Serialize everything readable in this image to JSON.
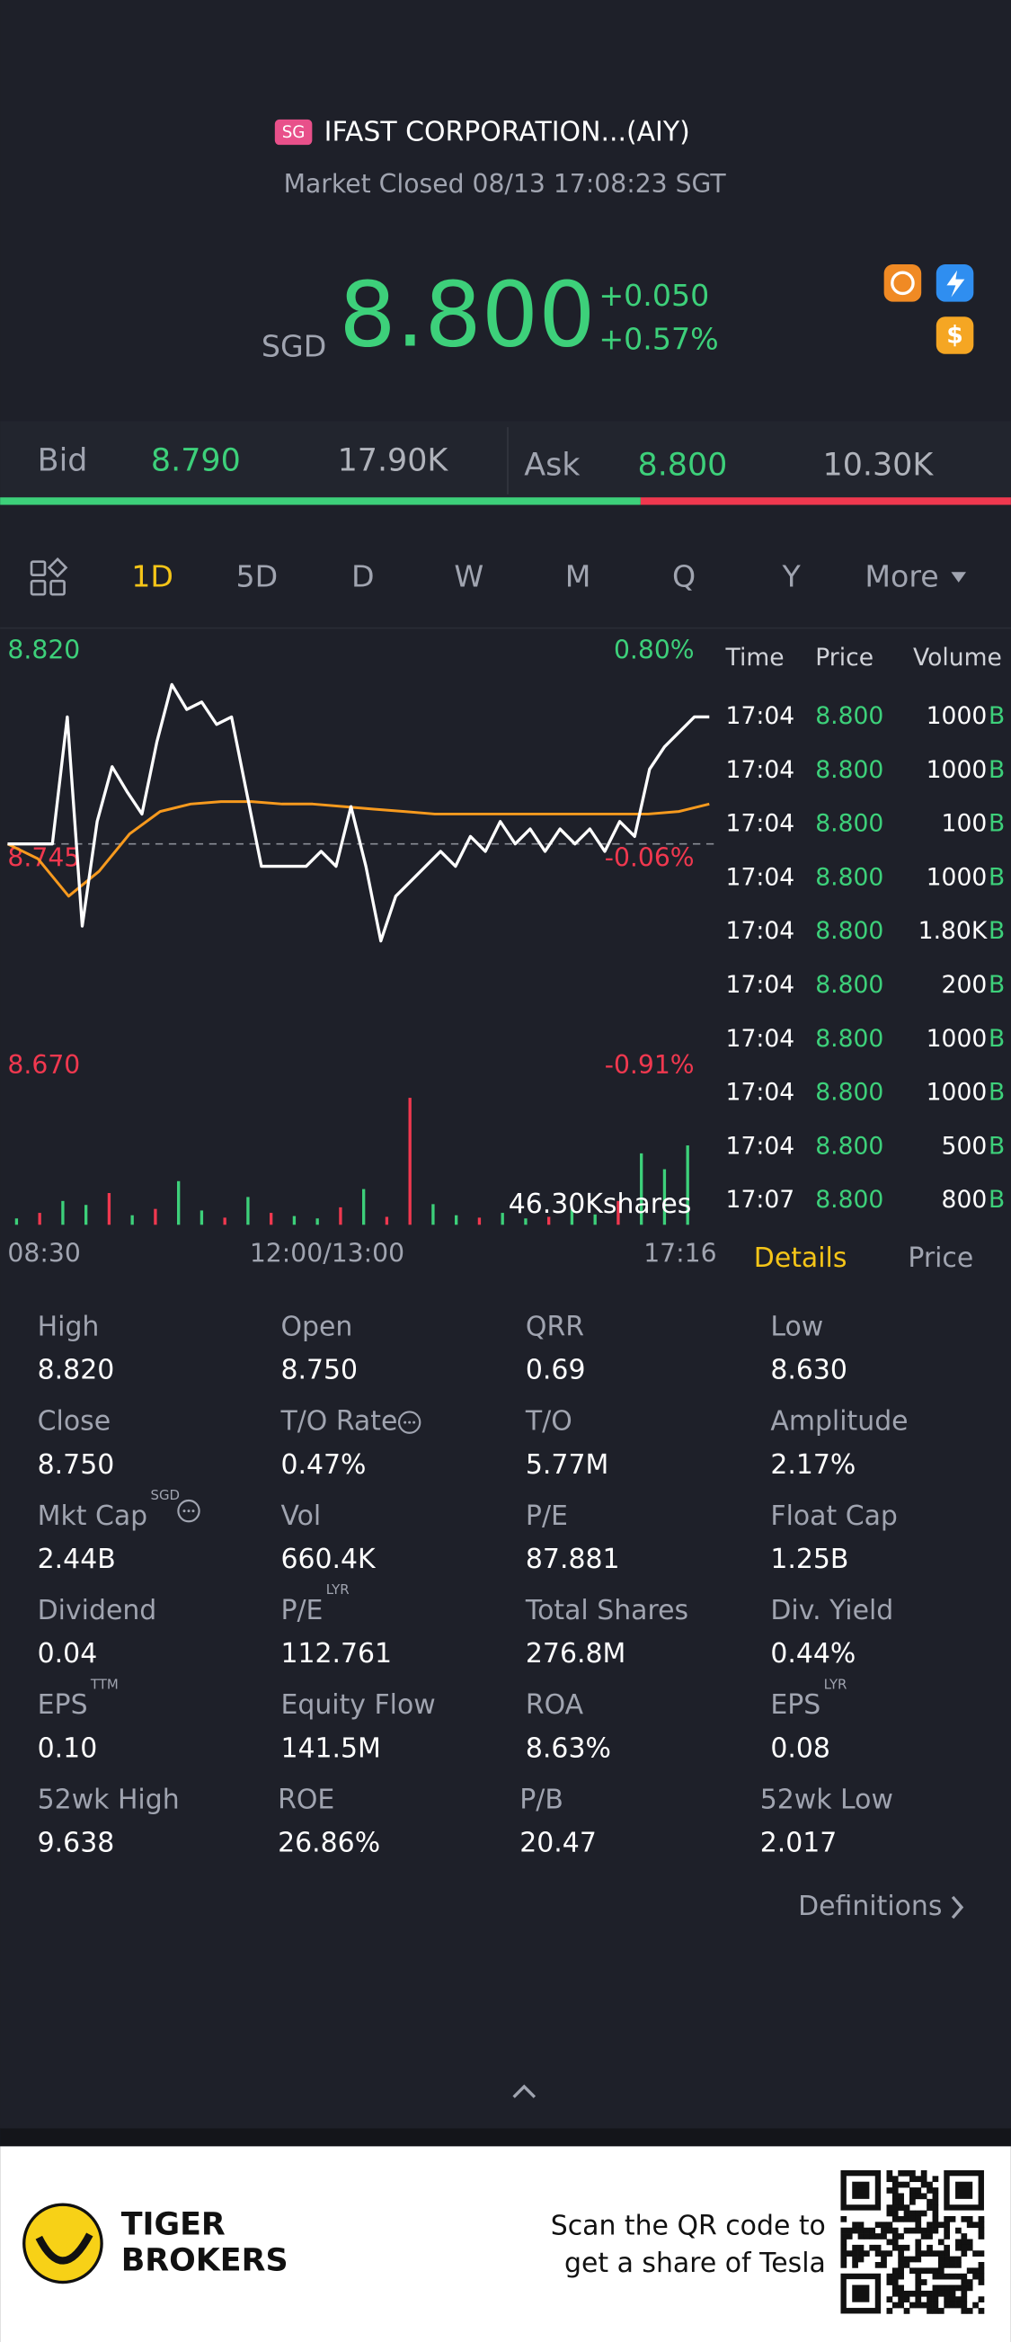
{
  "header": {
    "market_badge": "SG",
    "name": "IFAST CORPORATION...(AIY)",
    "status": "Market Closed 08/13 17:08:23 SGT"
  },
  "quote": {
    "currency": "SGD",
    "price": "8.800",
    "change": "+0.050",
    "change_pct": "+0.57%"
  },
  "bid_ask": {
    "bid_label": "Bid",
    "bid": "8.790",
    "bid_size": "17.90K",
    "ask_label": "Ask",
    "ask": "8.800",
    "ask_size": "10.30K"
  },
  "tabs": {
    "items": [
      "1D",
      "5D",
      "D",
      "W",
      "M",
      "Q",
      "Y",
      "More"
    ],
    "active": 0
  },
  "chart": {
    "ylim": [
      8.67,
      8.82
    ],
    "y_axis": [
      {
        "value": 8.82,
        "label": "8.820",
        "pct": "0.80%",
        "color": "#3dd07a"
      },
      {
        "value": 8.745,
        "label": "8.745",
        "pct": "-0.06%",
        "color": "#f0384f"
      },
      {
        "value": 8.67,
        "label": "8.670",
        "pct": "-0.91%",
        "color": "#f0384f"
      }
    ],
    "price": {
      "color": "#ffffff",
      "values": [
        8.751,
        8.751,
        8.751,
        8.751,
        8.802,
        8.718,
        8.76,
        8.782,
        8.772,
        8.763,
        8.792,
        8.815,
        8.805,
        8.808,
        8.799,
        8.802,
        8.772,
        8.742,
        8.742,
        8.742,
        8.742,
        8.748,
        8.742,
        8.766,
        8.742,
        8.712,
        8.73,
        8.736,
        8.742,
        8.748,
        8.742,
        8.754,
        8.748,
        8.76,
        8.751,
        8.757,
        8.748,
        8.757,
        8.751,
        8.757,
        8.748,
        8.76,
        8.754,
        8.781,
        8.79,
        8.796,
        8.802,
        8.802
      ]
    },
    "average": {
      "color": "#f79a1e",
      "values": [
        8.751,
        8.745,
        8.73,
        8.74,
        8.755,
        8.764,
        8.767,
        8.768,
        8.768,
        8.767,
        8.767,
        8.766,
        8.765,
        8.764,
        8.763,
        8.763,
        8.763,
        8.763,
        8.763,
        8.763,
        8.763,
        8.763,
        8.764,
        8.767
      ]
    },
    "volume": {
      "values": [
        800,
        1500,
        3000,
        2500,
        4000,
        1200,
        2000,
        5500,
        1800,
        900,
        3500,
        1500,
        1100,
        800,
        2200,
        4500,
        1000,
        16000,
        2600,
        1200,
        900,
        1500,
        800,
        1000,
        2000,
        1300,
        3000,
        9000,
        7000,
        10000
      ],
      "up": [
        true,
        false,
        true,
        true,
        false,
        true,
        false,
        true,
        true,
        false,
        true,
        false,
        true,
        true,
        false,
        true,
        false,
        false,
        true,
        true,
        false,
        true,
        true,
        false,
        true,
        true,
        false,
        true,
        true,
        true
      ],
      "up_color": "#3dd07a",
      "down_color": "#f0384f",
      "label": "46.30Kshares"
    },
    "x_labels": [
      "08:30",
      "12:00/13:00",
      "17:16"
    ]
  },
  "trades": {
    "headers": [
      "Time",
      "Price",
      "Volume"
    ],
    "rows": [
      [
        "17:04",
        "8.800",
        "1000",
        "B"
      ],
      [
        "17:04",
        "8.800",
        "1000",
        "B"
      ],
      [
        "17:04",
        "8.800",
        "100",
        "B"
      ],
      [
        "17:04",
        "8.800",
        "1000",
        "B"
      ],
      [
        "17:04",
        "8.800",
        "1.80K",
        "B"
      ],
      [
        "17:04",
        "8.800",
        "200",
        "B"
      ],
      [
        "17:04",
        "8.800",
        "1000",
        "B"
      ],
      [
        "17:04",
        "8.800",
        "1000",
        "B"
      ],
      [
        "17:04",
        "8.800",
        "500",
        "B"
      ],
      [
        "17:07",
        "8.800",
        "800",
        "B"
      ]
    ]
  },
  "detail_tabs": {
    "items": [
      "Details",
      "Price"
    ],
    "active": 0
  },
  "stats": [
    {
      "label": "High",
      "value": "8.820"
    },
    {
      "label": "Open",
      "value": "8.750"
    },
    {
      "label": "QRR",
      "value": "0.69"
    },
    {
      "label": "Low",
      "value": "8.630"
    },
    {
      "label": "Close",
      "value": "8.750"
    },
    {
      "label": "T/O Rate",
      "value": "0.47%",
      "info": true
    },
    {
      "label": "T/O",
      "value": "5.77M"
    },
    {
      "label": "Amplitude",
      "value": "2.17%"
    },
    {
      "label": "Mkt Cap",
      "sup": "SGD",
      "value": "2.44B",
      "info": true
    },
    {
      "label": "Vol",
      "value": "660.4K"
    },
    {
      "label": "P/E",
      "value": "87.881"
    },
    {
      "label": "Float Cap",
      "value": "1.25B"
    },
    {
      "label": "Dividend",
      "value": "0.04"
    },
    {
      "label": "P/E",
      "sup": "LYR",
      "value": "112.761"
    },
    {
      "label": "Total Shares",
      "value": "276.8M"
    },
    {
      "label": "Div. Yield",
      "value": "0.44%"
    },
    {
      "label": "EPS",
      "sup": "TTM",
      "value": "0.10"
    },
    {
      "label": "Equity Flow",
      "value": "141.5M"
    },
    {
      "label": "ROA",
      "value": "8.63%"
    },
    {
      "label": "EPS",
      "sup": "LYR",
      "value": "0.08"
    },
    {
      "label": "52wk High",
      "value": "9.638"
    },
    {
      "label": "ROE",
      "value": "26.86%"
    },
    {
      "label": "P/B",
      "value": "20.47"
    },
    {
      "label": "52wk Low",
      "value": "2.017"
    }
  ],
  "definitions": "Definitions",
  "footer": {
    "brand": [
      "TIGER",
      "BROKERS"
    ],
    "promo": [
      "Scan the QR code to",
      "get a share of Tesla"
    ]
  }
}
